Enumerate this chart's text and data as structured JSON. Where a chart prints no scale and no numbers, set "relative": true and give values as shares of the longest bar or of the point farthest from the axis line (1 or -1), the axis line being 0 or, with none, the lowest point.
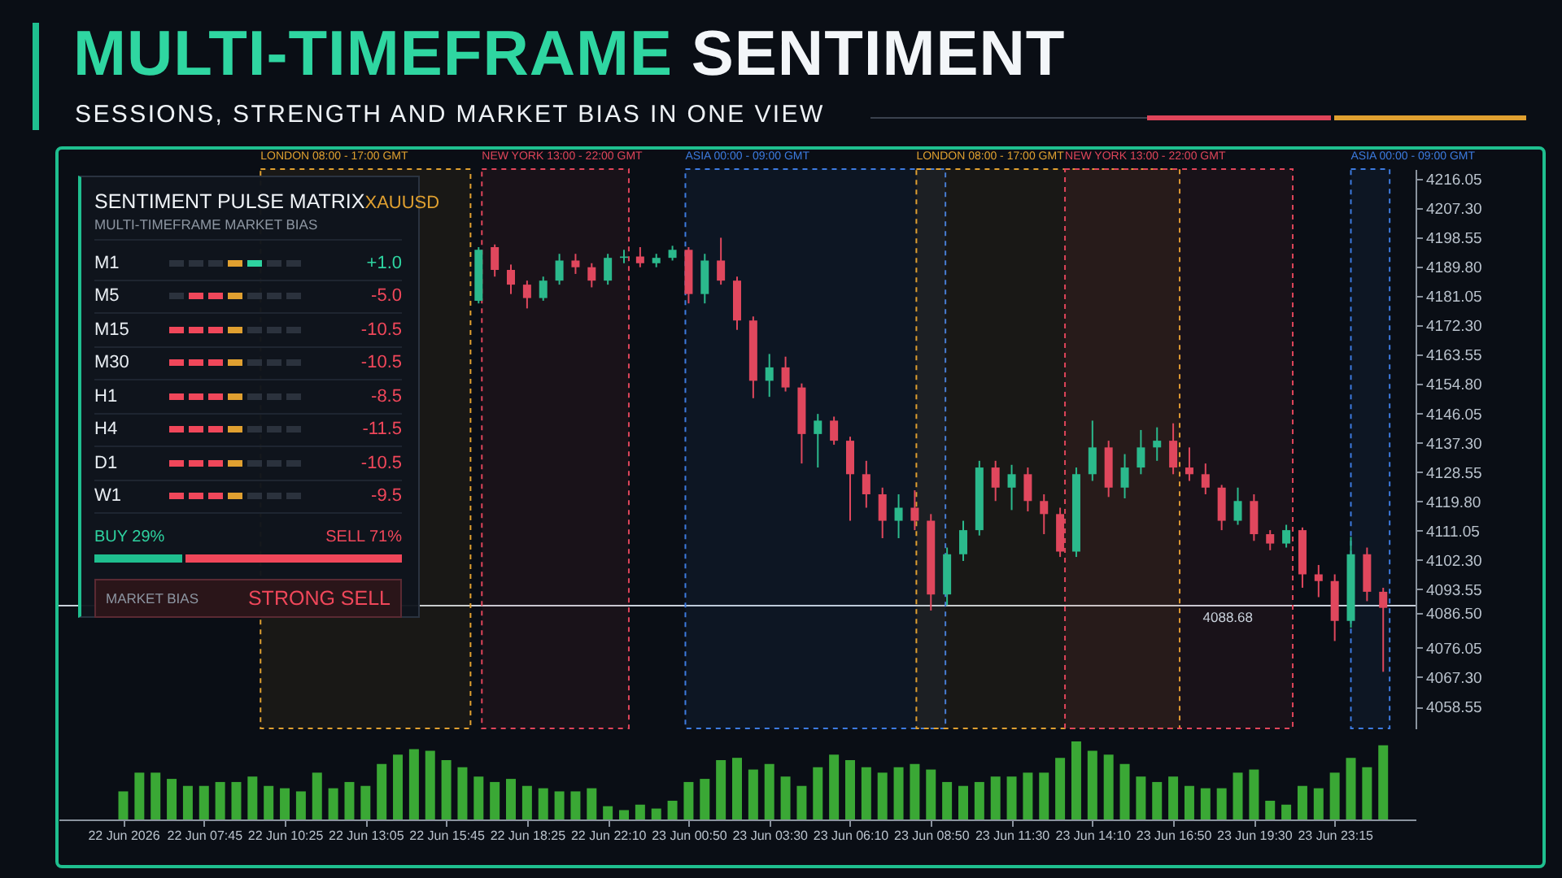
{
  "chart_data": [
    {
      "type": "candlestick",
      "title": "MULTI-TIMEFRAME SENTIMENT",
      "subtitle": "SESSIONS, STRENGTH AND MARKET BIAS IN ONE VIEW",
      "categories": [
        null,
        null,
        null,
        null,
        null,
        null,
        null,
        null,
        null,
        null,
        null,
        null,
        null,
        null,
        null,
        null,
        null,
        null,
        null,
        null,
        null,
        null,
        null,
        null,
        null,
        null,
        null,
        null,
        null,
        null,
        null,
        null,
        null,
        null,
        null,
        null,
        null,
        null,
        null,
        null,
        null,
        null,
        null,
        null,
        null,
        null,
        null,
        null,
        null,
        null,
        null,
        null,
        null,
        null,
        null,
        null,
        null,
        null,
        null,
        null,
        null,
        null,
        null,
        null,
        null,
        null,
        null,
        null,
        null,
        null,
        null,
        null,
        null,
        null,
        null,
        null,
        null,
        null,
        null
      ],
      "ohlc": [
        null,
        null,
        null,
        null,
        null,
        null,
        null,
        null,
        null,
        null,
        null,
        null,
        null,
        null,
        null,
        null,
        null,
        null,
        null,
        null,
        null,
        null,
        [
          4179.7,
          4195.7,
          4178.9,
          4194.9
        ],
        [
          4195.7,
          4196.5,
          4186.9,
          4188.9
        ],
        [
          4188.9,
          4190.5,
          4181.7,
          4184.5
        ],
        [
          4184.5,
          4185.7,
          4177.4,
          4180.5
        ],
        [
          4180.5,
          4186.9,
          4179.7,
          4185.7
        ],
        [
          4185.7,
          4193.7,
          4184.5,
          4191.7
        ],
        [
          4191.7,
          4193.7,
          4187.7,
          4189.7
        ],
        [
          4189.7,
          4190.9,
          4183.7,
          4185.7
        ],
        [
          4185.7,
          4193.7,
          4184.5,
          4192.5
        ],
        [
          4192.5,
          4194.9,
          4190.9,
          4192.9
        ],
        [
          4192.9,
          4195.7,
          4189.7,
          4190.9
        ],
        [
          4190.9,
          4193.7,
          4189.7,
          4192.5
        ],
        [
          4192.5,
          4196.1,
          4191.7,
          4194.9
        ],
        [
          4194.9,
          4195.7,
          4178.9,
          4181.7
        ],
        [
          4181.7,
          4193.7,
          4178.9,
          4191.7
        ],
        [
          4191.7,
          4198.5,
          4184.5,
          4185.7
        ],
        [
          4185.7,
          4186.9,
          4171.0,
          4173.8
        ],
        [
          4173.8,
          4175.0,
          4150.6,
          4155.8
        ],
        [
          4155.8,
          4163.8,
          4151.0,
          4159.8
        ],
        [
          4159.8,
          4163.0,
          4152.6,
          4153.8
        ],
        [
          4153.8,
          4155.0,
          4131.1,
          4139.9
        ],
        [
          4139.9,
          4145.9,
          4129.9,
          4143.9
        ],
        [
          4143.9,
          4145.1,
          4136.7,
          4137.9
        ],
        [
          4137.9,
          4139.1,
          4114.0,
          4127.9
        ],
        [
          4127.9,
          4131.9,
          4117.9,
          4121.9
        ],
        [
          4121.9,
          4123.9,
          4108.8,
          4114.0
        ],
        [
          4114.0,
          4121.9,
          4108.8,
          4117.9
        ],
        [
          4117.9,
          4123.1,
          4111.2,
          4114.0
        ],
        [
          4114.0,
          4116.0,
          4087.2,
          4092.0
        ],
        [
          4092.0,
          4106.0,
          4088.8,
          4104.0
        ],
        [
          4104.0,
          4114.0,
          4102.0,
          4111.2
        ],
        [
          4111.2,
          4131.9,
          4109.6,
          4129.9
        ],
        [
          4129.9,
          4131.9,
          4119.9,
          4123.9
        ],
        [
          4123.9,
          4130.7,
          4117.2,
          4127.9
        ],
        [
          4127.9,
          4129.9,
          4116.8,
          4119.9
        ],
        [
          4119.9,
          4121.9,
          4110.0,
          4116.0
        ],
        [
          4116.0,
          4117.9,
          4103.2,
          4104.8
        ],
        [
          4104.8,
          4129.9,
          4103.2,
          4127.9
        ],
        [
          4127.9,
          4143.9,
          4125.9,
          4135.9
        ],
        [
          4135.9,
          4137.9,
          4121.1,
          4123.9
        ],
        [
          4123.9,
          4133.9,
          4120.7,
          4129.9
        ],
        [
          4129.9,
          4141.1,
          4127.9,
          4135.9
        ],
        [
          4135.9,
          4141.9,
          4131.9,
          4137.9
        ],
        [
          4137.9,
          4143.1,
          4127.9,
          4129.9
        ],
        [
          4129.9,
          4135.9,
          4125.9,
          4127.9
        ],
        [
          4127.9,
          4131.1,
          4121.9,
          4123.9
        ],
        [
          4123.9,
          4124.7,
          4111.2,
          4114.0
        ],
        [
          4114.0,
          4123.9,
          4112.8,
          4119.9
        ],
        [
          4119.9,
          4121.9,
          4108.0,
          4110.0
        ],
        [
          4110.0,
          4111.2,
          4105.2,
          4107.2
        ],
        [
          4107.2,
          4112.8,
          4106.0,
          4111.2
        ],
        [
          4111.2,
          4112.0,
          4094.0,
          4098.0
        ],
        [
          4098.0,
          4100.8,
          4091.2,
          4096.0
        ],
        [
          4096.0,
          4098.0,
          4078.1,
          4084.1
        ],
        [
          4084.1,
          4109.2,
          4082.1,
          4104.0
        ],
        [
          4104.0,
          4106.0,
          4090.0,
          4092.8
        ],
        [
          4092.8,
          4094.0,
          4068.9,
          4088.0
        ]
      ],
      "ylim": [
        4052,
        4219
      ],
      "yticks": [
        {
          "value": 4216.05,
          "label": "4216.05"
        },
        {
          "value": 4207.3,
          "label": "4207.30"
        },
        {
          "value": 4198.55,
          "label": "4198.55"
        },
        {
          "value": 4189.8,
          "label": "4189.80"
        },
        {
          "value": 4181.05,
          "label": "4181.05"
        },
        {
          "value": 4172.3,
          "label": "4172.30"
        },
        {
          "value": 4163.55,
          "label": "4163.55"
        },
        {
          "value": 4154.8,
          "label": "4154.80"
        },
        {
          "value": 4146.05,
          "label": "4146.05"
        },
        {
          "value": 4137.3,
          "label": "4137.30"
        },
        {
          "value": 4128.55,
          "label": "4128.55"
        },
        {
          "value": 4119.8,
          "label": "4119.80"
        },
        {
          "value": 4111.05,
          "label": "4111.05"
        },
        {
          "value": 4102.3,
          "label": "4102.30"
        },
        {
          "value": 4093.55,
          "label": "4093.55"
        },
        {
          "value": 4086.5,
          "label": "4086.50"
        },
        {
          "value": 4076.05,
          "label": "4076.05"
        },
        {
          "value": 4067.3,
          "label": "4067.30"
        },
        {
          "value": 4058.55,
          "label": "4058.55"
        }
      ],
      "tick_labels": "y",
      "annotations": [
        "LONDON 08:00 - 17:00 GMT",
        "NEW YORK 13:00 - 22:00 GMT",
        "ASIA 00:00 - 09:00 GMT",
        "LONDON 08:00 - 17:00 GMT",
        "NEW YORK 13:00 - 22:00 GMT",
        "ASIA 00:00 - 09:00 GMT"
      ],
      "ref_lines": [
        {
          "axis": "y",
          "value": 4088.68,
          "label": "4088.68",
          "color": "#c8d0da"
        }
      ]
    },
    {
      "type": "bar",
      "relative": true,
      "color": "#3aa835",
      "categories": [
        "22 Jun 2026",
        null,
        null,
        null,
        null,
        "22 Jun 07:45",
        null,
        null,
        null,
        null,
        "22 Jun 10:25",
        null,
        null,
        null,
        null,
        "22 Jun 13:05",
        null,
        null,
        null,
        null,
        "22 Jun 15:45",
        null,
        null,
        null,
        null,
        "22 Jun 18:25",
        null,
        null,
        null,
        null,
        "22 Jun 22:10",
        null,
        null,
        null,
        null,
        "23 Jun 00:50",
        null,
        null,
        null,
        null,
        "23 Jun 03:30",
        null,
        null,
        null,
        null,
        "23 Jun 06:10",
        null,
        null,
        null,
        null,
        "23 Jun 08:50",
        null,
        null,
        null,
        null,
        "23 Jun 11:30",
        null,
        null,
        null,
        null,
        "23 Jun 14:10",
        null,
        null,
        null,
        null,
        "23 Jun 16:50",
        null,
        null,
        null,
        null,
        "23 Jun 19:30",
        null,
        null,
        null,
        null,
        "23 Jun 23:15",
        null,
        null,
        null
      ],
      "values": [
        0.36,
        0.6,
        0.6,
        0.52,
        0.43,
        0.43,
        0.48,
        0.48,
        0.55,
        0.43,
        0.4,
        0.36,
        0.6,
        0.4,
        0.48,
        0.43,
        0.71,
        0.83,
        0.9,
        0.88,
        0.76,
        0.67,
        0.55,
        0.48,
        0.52,
        0.43,
        0.4,
        0.36,
        0.36,
        0.4,
        0.17,
        0.12,
        0.19,
        0.14,
        0.24,
        0.48,
        0.52,
        0.76,
        0.79,
        0.64,
        0.71,
        0.55,
        0.43,
        0.67,
        0.83,
        0.76,
        0.67,
        0.6,
        0.67,
        0.71,
        0.64,
        0.48,
        0.43,
        0.48,
        0.55,
        0.55,
        0.6,
        0.6,
        0.79,
        1,
        0.88,
        0.83,
        0.71,
        0.55,
        0.48,
        0.55,
        0.43,
        0.4,
        0.4,
        0.6,
        0.64,
        0.24,
        0.19,
        0.43,
        0.4,
        0.6,
        0.79,
        0.67,
        0.95
      ],
      "tick_labels": "x"
    },
    {
      "type": "other",
      "title": "SENTIMENT PULSE MATRIX",
      "subtitle": "MULTI-TIMEFRAME MARKET BIAS",
      "categories": [
        "M1",
        "M5",
        "M15",
        "M30",
        "H1",
        "H4",
        "D1",
        "W1"
      ],
      "values": [
        1.0,
        -5.0,
        -10.5,
        -10.5,
        -8.5,
        -11.5,
        -10.5,
        -9.5
      ],
      "value_labels": [
        "+1.0",
        "-5.0",
        "-10.5",
        "-10.5",
        "-8.5",
        "-11.5",
        "-10.5",
        "-9.5"
      ],
      "annotations": [
        "XAUUSD",
        "BUY 29%",
        "SELL 71%",
        "MARKET BIAS",
        "STRONG SELL"
      ]
    }
  ]
}
